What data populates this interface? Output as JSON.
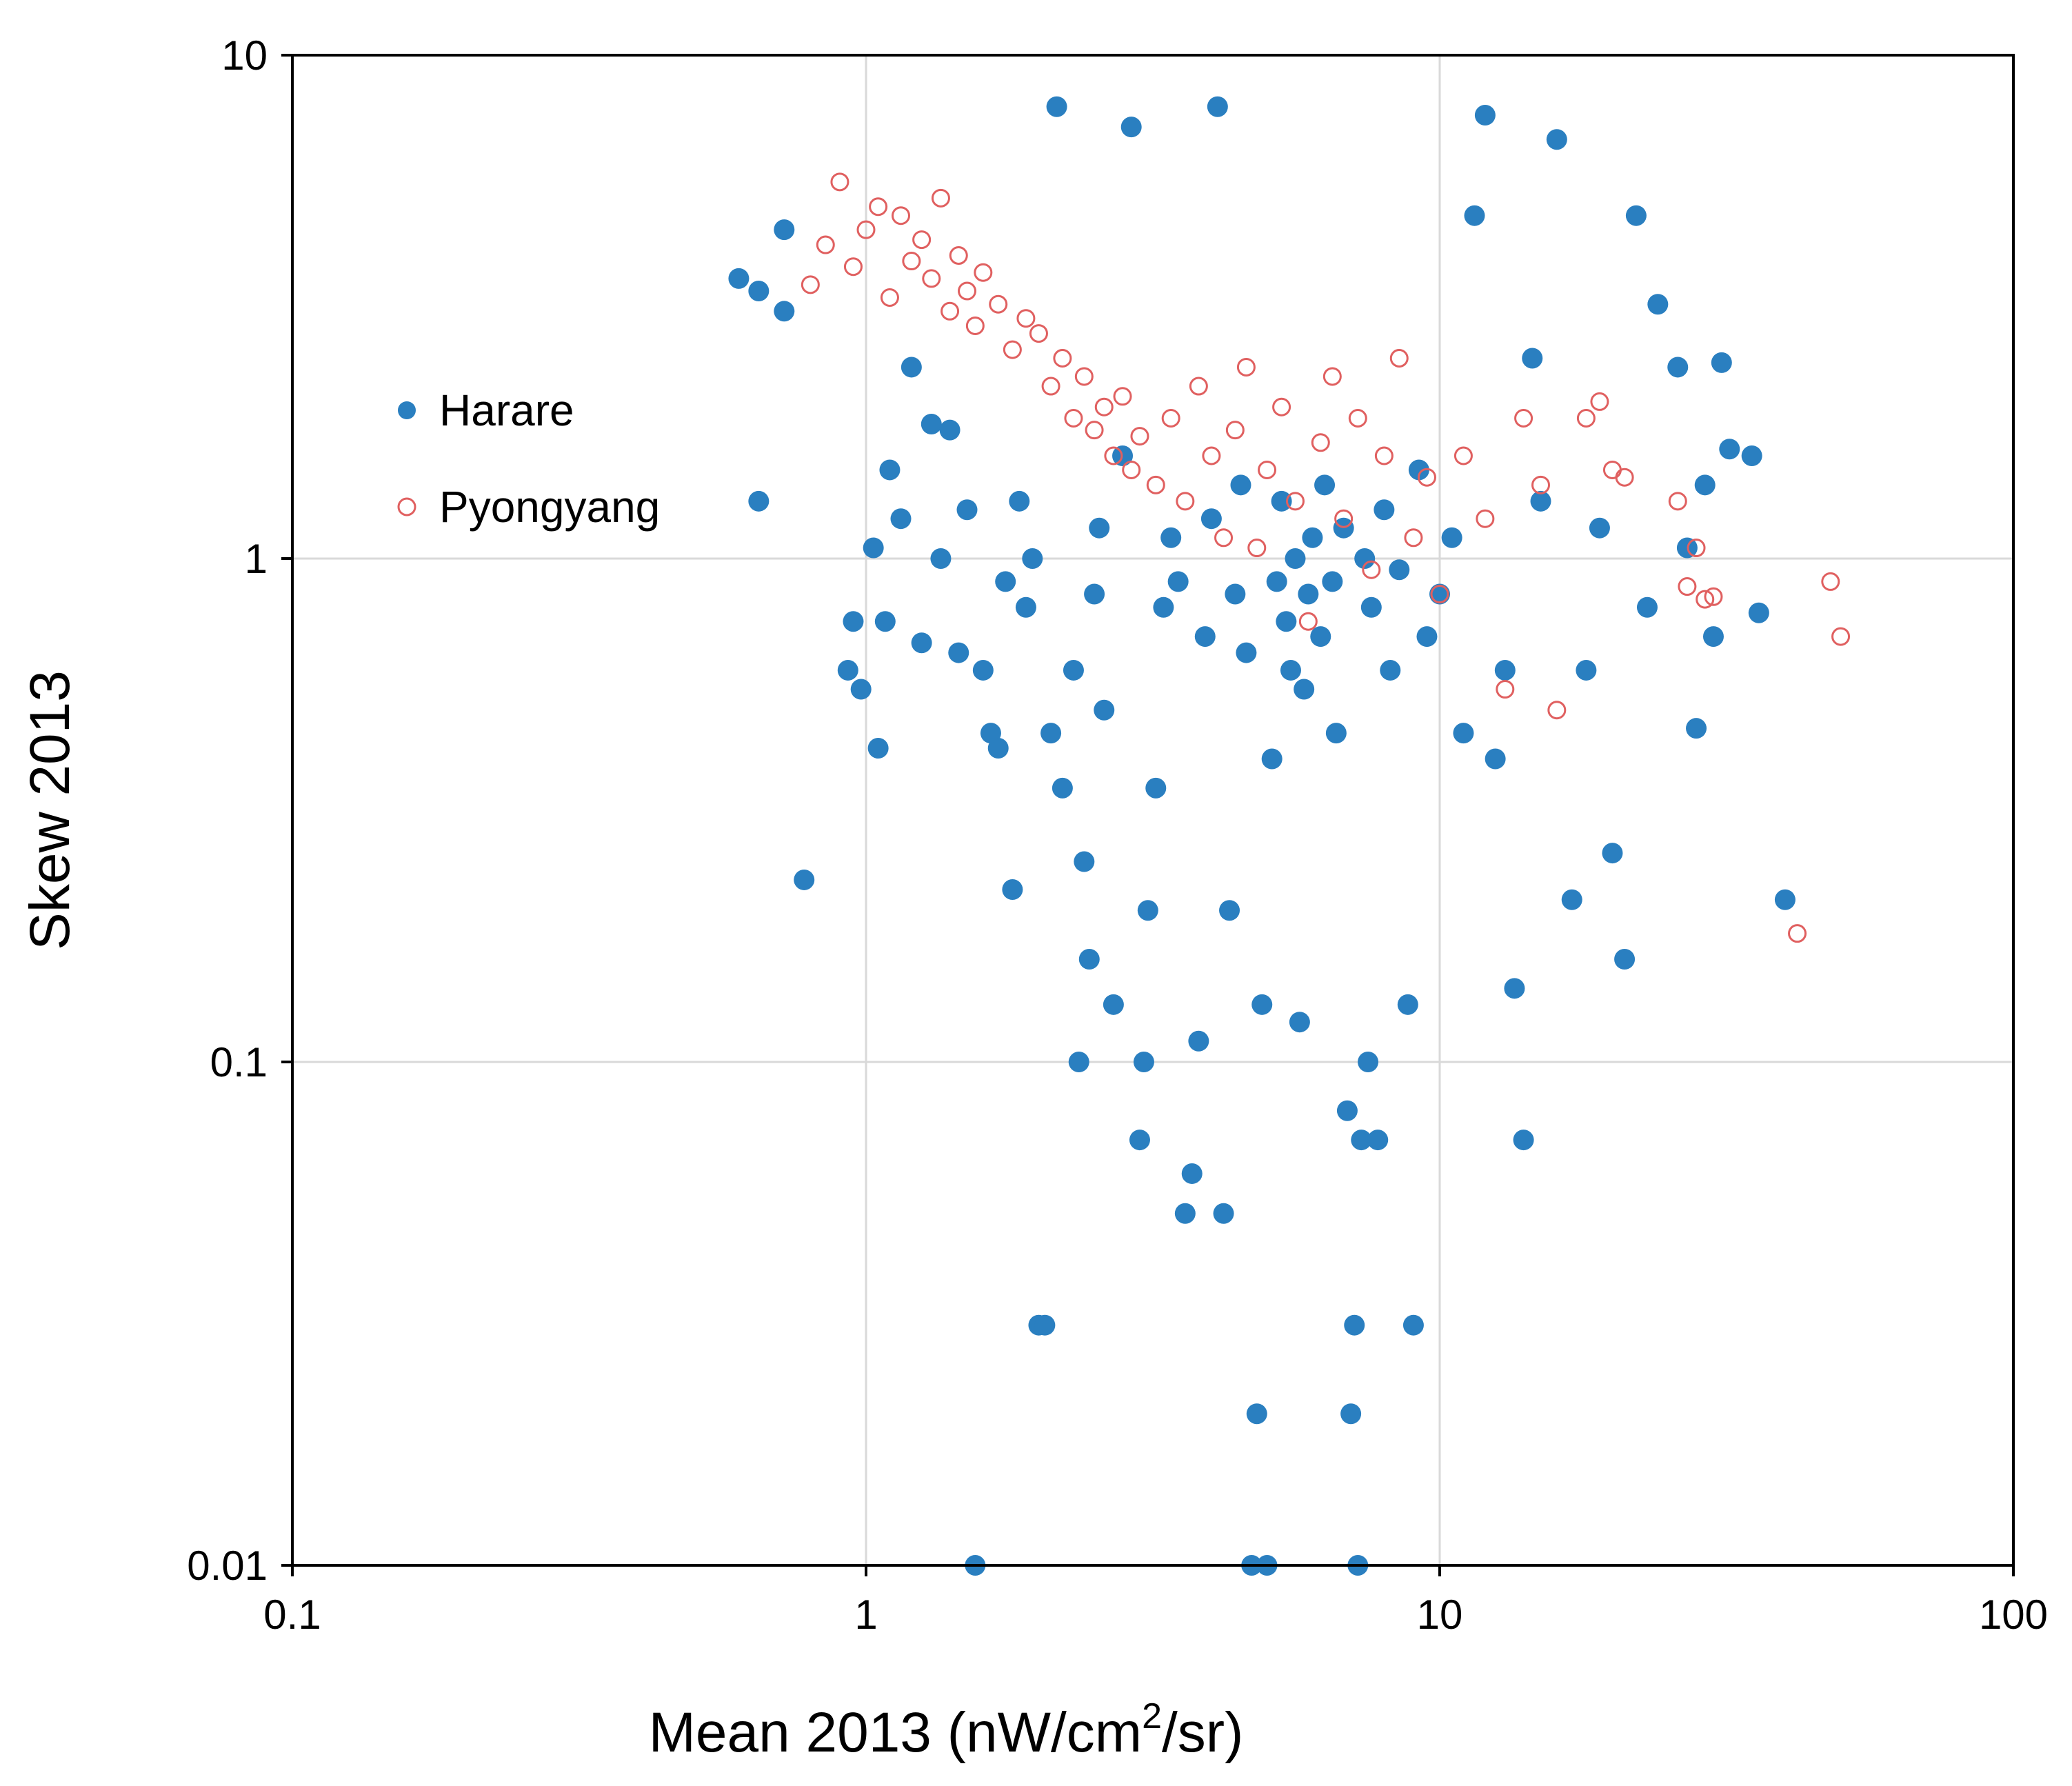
{
  "chart_data": {
    "type": "scatter",
    "title": "",
    "xlabel": {
      "main": "Mean 2013 (nW/cm",
      "sup": "2",
      "tail": "/sr)"
    },
    "ylabel": "Skew 2013",
    "xscale": "log",
    "yscale": "log",
    "xlim": [
      0.1,
      100
    ],
    "ylim": [
      0.01,
      10
    ],
    "xticks": [
      0.1,
      1,
      10,
      100
    ],
    "xtick_labels": [
      "0.1",
      "1",
      "10",
      "100"
    ],
    "yticks": [
      0.01,
      0.1,
      1,
      10
    ],
    "ytick_labels": [
      "0.01",
      "0.1",
      "1",
      "10"
    ],
    "grid": true,
    "legend_position": "upper-left",
    "series": [
      {
        "name": "Harare",
        "marker": "filled-circle",
        "color": "#2a7fc0",
        "points": [
          [
            0.6,
            3.6
          ],
          [
            0.65,
            3.4
          ],
          [
            0.72,
            4.5
          ],
          [
            0.72,
            3.1
          ],
          [
            0.65,
            1.3
          ],
          [
            0.78,
            0.23
          ],
          [
            0.93,
            0.6
          ],
          [
            0.95,
            0.75
          ],
          [
            0.98,
            0.55
          ],
          [
            1.03,
            1.05
          ],
          [
            1.05,
            0.42
          ],
          [
            1.08,
            0.75
          ],
          [
            1.1,
            1.5
          ],
          [
            1.15,
            1.2
          ],
          [
            1.2,
            2.4
          ],
          [
            1.25,
            0.68
          ],
          [
            1.3,
            1.85
          ],
          [
            1.35,
            1.0
          ],
          [
            1.4,
            1.8
          ],
          [
            1.45,
            0.65
          ],
          [
            1.5,
            1.25
          ],
          [
            1.55,
            0.01
          ],
          [
            1.6,
            0.6
          ],
          [
            1.65,
            0.45
          ],
          [
            1.7,
            0.42
          ],
          [
            1.75,
            0.9
          ],
          [
            1.8,
            0.22
          ],
          [
            1.85,
            1.3
          ],
          [
            1.9,
            0.8
          ],
          [
            1.95,
            1.0
          ],
          [
            2.0,
            0.03
          ],
          [
            2.05,
            0.03
          ],
          [
            2.1,
            0.45
          ],
          [
            2.15,
            7.9
          ],
          [
            2.2,
            0.35
          ],
          [
            2.3,
            0.6
          ],
          [
            2.35,
            0.1
          ],
          [
            2.4,
            0.25
          ],
          [
            2.45,
            0.16
          ],
          [
            2.5,
            0.85
          ],
          [
            2.55,
            1.15
          ],
          [
            2.6,
            0.5
          ],
          [
            2.7,
            0.13
          ],
          [
            2.8,
            1.6
          ],
          [
            2.9,
            7.2
          ],
          [
            3.0,
            0.07
          ],
          [
            3.05,
            0.1
          ],
          [
            3.1,
            0.2
          ],
          [
            3.2,
            0.35
          ],
          [
            3.3,
            0.8
          ],
          [
            3.4,
            1.1
          ],
          [
            3.5,
            0.9
          ],
          [
            3.6,
            0.05
          ],
          [
            3.7,
            0.06
          ],
          [
            3.8,
            0.11
          ],
          [
            3.9,
            0.7
          ],
          [
            4.0,
            1.2
          ],
          [
            4.1,
            7.9
          ],
          [
            4.2,
            0.05
          ],
          [
            4.3,
            0.2
          ],
          [
            4.4,
            0.85
          ],
          [
            4.5,
            1.4
          ],
          [
            4.6,
            0.65
          ],
          [
            4.7,
            0.01
          ],
          [
            4.8,
            0.02
          ],
          [
            4.9,
            0.13
          ],
          [
            5.0,
            0.01
          ],
          [
            5.1,
            0.4
          ],
          [
            5.2,
            0.9
          ],
          [
            5.3,
            1.3
          ],
          [
            5.4,
            0.75
          ],
          [
            5.5,
            0.6
          ],
          [
            5.6,
            1.0
          ],
          [
            5.7,
            0.12
          ],
          [
            5.8,
            0.55
          ],
          [
            5.9,
            0.85
          ],
          [
            6.0,
            1.1
          ],
          [
            6.2,
            0.7
          ],
          [
            6.3,
            1.4
          ],
          [
            6.5,
            0.9
          ],
          [
            6.6,
            0.45
          ],
          [
            6.8,
            1.15
          ],
          [
            6.9,
            0.08
          ],
          [
            7.0,
            0.02
          ],
          [
            7.1,
            0.03
          ],
          [
            7.2,
            0.01
          ],
          [
            7.3,
            0.07
          ],
          [
            7.4,
            1.0
          ],
          [
            7.5,
            0.1
          ],
          [
            7.6,
            0.8
          ],
          [
            7.8,
            0.07
          ],
          [
            8.0,
            1.25
          ],
          [
            8.2,
            0.6
          ],
          [
            8.5,
            0.95
          ],
          [
            8.8,
            0.13
          ],
          [
            9.0,
            0.03
          ],
          [
            9.2,
            1.5
          ],
          [
            9.5,
            0.7
          ],
          [
            10.0,
            0.85
          ],
          [
            10.5,
            1.1
          ],
          [
            11.0,
            0.45
          ],
          [
            11.5,
            4.8
          ],
          [
            12.0,
            7.6
          ],
          [
            12.5,
            0.4
          ],
          [
            13.0,
            0.6
          ],
          [
            13.5,
            0.14
          ],
          [
            14.0,
            0.07
          ],
          [
            14.5,
            2.5
          ],
          [
            15.0,
            1.3
          ],
          [
            16.0,
            6.8
          ],
          [
            17.0,
            0.21
          ],
          [
            18.0,
            0.6
          ],
          [
            19.0,
            1.15
          ],
          [
            20.0,
            0.26
          ],
          [
            21.0,
            0.16
          ],
          [
            22.0,
            4.8
          ],
          [
            23.0,
            0.8
          ],
          [
            24.0,
            3.2
          ],
          [
            26.0,
            2.4
          ],
          [
            27.0,
            1.05
          ],
          [
            28.0,
            0.46
          ],
          [
            29.0,
            1.4
          ],
          [
            30.0,
            0.7
          ],
          [
            31.0,
            2.45
          ],
          [
            32.0,
            1.65
          ],
          [
            35.0,
            1.6
          ],
          [
            36.0,
            0.78
          ],
          [
            40.0,
            0.21
          ]
        ]
      },
      {
        "name": "Pyongyang",
        "marker": "open-circle",
        "color": "#e06060",
        "points": [
          [
            0.8,
            3.5
          ],
          [
            0.85,
            4.2
          ],
          [
            0.9,
            5.6
          ],
          [
            0.95,
            3.8
          ],
          [
            1.0,
            4.5
          ],
          [
            1.05,
            5.0
          ],
          [
            1.1,
            3.3
          ],
          [
            1.15,
            4.8
          ],
          [
            1.2,
            3.9
          ],
          [
            1.25,
            4.3
          ],
          [
            1.3,
            3.6
          ],
          [
            1.35,
            5.2
          ],
          [
            1.4,
            3.1
          ],
          [
            1.45,
            4.0
          ],
          [
            1.5,
            3.4
          ],
          [
            1.55,
            2.9
          ],
          [
            1.6,
            3.7
          ],
          [
            1.7,
            3.2
          ],
          [
            1.8,
            2.6
          ],
          [
            1.9,
            3.0
          ],
          [
            2.0,
            2.8
          ],
          [
            2.1,
            2.2
          ],
          [
            2.2,
            2.5
          ],
          [
            2.3,
            1.9
          ],
          [
            2.4,
            2.3
          ],
          [
            2.5,
            1.8
          ],
          [
            2.6,
            2.0
          ],
          [
            2.7,
            1.6
          ],
          [
            2.8,
            2.1
          ],
          [
            2.9,
            1.5
          ],
          [
            3.0,
            1.75
          ],
          [
            3.2,
            1.4
          ],
          [
            3.4,
            1.9
          ],
          [
            3.6,
            1.3
          ],
          [
            3.8,
            2.2
          ],
          [
            4.0,
            1.6
          ],
          [
            4.2,
            1.1
          ],
          [
            4.4,
            1.8
          ],
          [
            4.6,
            2.4
          ],
          [
            4.8,
            1.05
          ],
          [
            5.0,
            1.5
          ],
          [
            5.3,
            2.0
          ],
          [
            5.6,
            1.3
          ],
          [
            5.9,
            0.75
          ],
          [
            6.2,
            1.7
          ],
          [
            6.5,
            2.3
          ],
          [
            6.8,
            1.2
          ],
          [
            7.2,
            1.9
          ],
          [
            7.6,
            0.95
          ],
          [
            8.0,
            1.6
          ],
          [
            8.5,
            2.5
          ],
          [
            9.0,
            1.1
          ],
          [
            9.5,
            1.45
          ],
          [
            10.0,
            0.85
          ],
          [
            11.0,
            1.6
          ],
          [
            12.0,
            1.2
          ],
          [
            13.0,
            0.55
          ],
          [
            14.0,
            1.9
          ],
          [
            15.0,
            1.4
          ],
          [
            16.0,
            0.5
          ],
          [
            18.0,
            1.9
          ],
          [
            19.0,
            2.05
          ],
          [
            20.0,
            1.5
          ],
          [
            21.0,
            1.45
          ],
          [
            26.0,
            1.3
          ],
          [
            27.0,
            0.88
          ],
          [
            28.0,
            1.05
          ],
          [
            29.0,
            0.83
          ],
          [
            30.0,
            0.84
          ],
          [
            48.0,
            0.9
          ],
          [
            50.0,
            0.7
          ],
          [
            42.0,
            0.18
          ]
        ]
      }
    ],
    "legend": [
      {
        "label": "Harare",
        "marker": "filled-circle"
      },
      {
        "label": "Pyongyang",
        "marker": "open-circle"
      }
    ]
  }
}
